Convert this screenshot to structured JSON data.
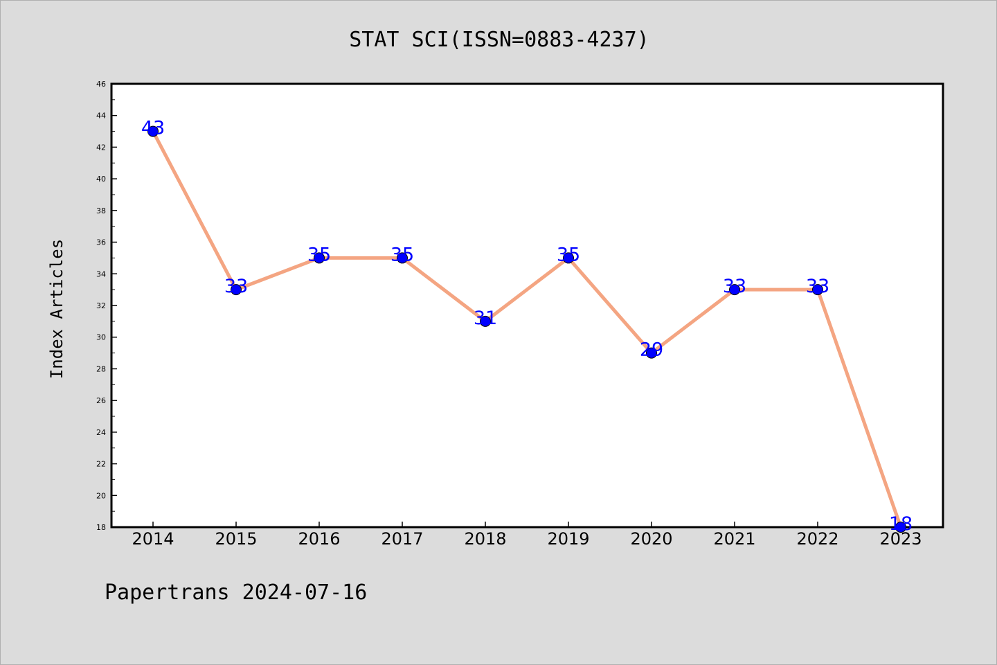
{
  "chart_data": {
    "type": "line",
    "title": "STAT SCI(ISSN=0883-4237)",
    "ylabel": "Index Articles",
    "xlabel": "",
    "categories": [
      "2014",
      "2015",
      "2016",
      "2017",
      "2018",
      "2019",
      "2020",
      "2021",
      "2022",
      "2023"
    ],
    "series": [
      {
        "values": [
          43,
          33,
          35,
          35,
          31,
          35,
          29,
          33,
          33,
          18
        ]
      }
    ],
    "ylim": [
      18,
      46
    ],
    "yticks": [
      "18",
      "20",
      "22",
      "24",
      "26",
      "28",
      "30",
      "32",
      "34",
      "36",
      "38",
      "40",
      "42",
      "44",
      "46"
    ],
    "data_labels": [
      "43",
      "33",
      "35",
      "35",
      "31",
      "35",
      "29",
      "33",
      "33",
      "18"
    ],
    "grid": false,
    "legend": "none",
    "colors": {
      "line": "#f4a582",
      "marker": "#0000ff",
      "label": "#0000ff",
      "background": "#dcdcdc",
      "plot_background": "#ffffff"
    }
  },
  "footer": {
    "source_text": "Papertrans 2024-07-16"
  }
}
